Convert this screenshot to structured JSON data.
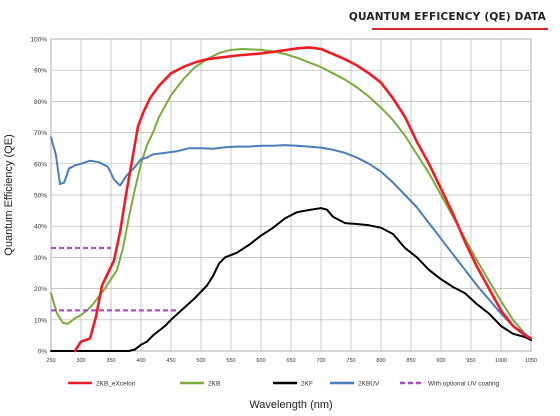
{
  "chart_data": {
    "type": "line",
    "title": "QUANTUM EFFICENCY (QE) DATA",
    "xlabel": "Wavelength (nm)",
    "ylabel": "Quantum Efficiency (QE)",
    "xlim": [
      250,
      1050
    ],
    "ylim": [
      0,
      100
    ],
    "x_ticks": [
      250,
      300,
      350,
      400,
      450,
      500,
      550,
      600,
      650,
      700,
      750,
      800,
      850,
      900,
      950,
      1000,
      1050
    ],
    "y_ticks": [
      0,
      10,
      20,
      30,
      40,
      50,
      60,
      70,
      80,
      90,
      100
    ],
    "y_tick_labels": [
      "0%",
      "10%",
      "20%",
      "30%",
      "40%",
      "50%",
      "60%",
      "70%",
      "80%",
      "90%",
      "100%"
    ],
    "grid": true,
    "legend_position": "bottom",
    "series": [
      {
        "name": "2KB_eXcelon",
        "color": "#ee1c25",
        "style": "solid",
        "points": [
          [
            290,
            0
          ],
          [
            300,
            3
          ],
          [
            315,
            4
          ],
          [
            325,
            11
          ],
          [
            335,
            21
          ],
          [
            345,
            25
          ],
          [
            355,
            29
          ],
          [
            365,
            38
          ],
          [
            375,
            50
          ],
          [
            385,
            61
          ],
          [
            395,
            72
          ],
          [
            405,
            77
          ],
          [
            415,
            81
          ],
          [
            430,
            85
          ],
          [
            450,
            89
          ],
          [
            470,
            91
          ],
          [
            490,
            92.5
          ],
          [
            510,
            93.5
          ],
          [
            530,
            94
          ],
          [
            560,
            94.7
          ],
          [
            600,
            95.4
          ],
          [
            640,
            96.4
          ],
          [
            660,
            97
          ],
          [
            680,
            97.3
          ],
          [
            700,
            96.8
          ],
          [
            720,
            95.2
          ],
          [
            740,
            93.5
          ],
          [
            760,
            91.5
          ],
          [
            780,
            89
          ],
          [
            800,
            86
          ],
          [
            820,
            81
          ],
          [
            840,
            75
          ],
          [
            860,
            67
          ],
          [
            880,
            60
          ],
          [
            900,
            52
          ],
          [
            920,
            44
          ],
          [
            940,
            35
          ],
          [
            960,
            27
          ],
          [
            980,
            20
          ],
          [
            1000,
            13
          ],
          [
            1020,
            8
          ],
          [
            1040,
            5
          ],
          [
            1050,
            4
          ]
        ]
      },
      {
        "name": "2KB",
        "color": "#7cab3c",
        "style": "solid",
        "points": [
          [
            250,
            18.5
          ],
          [
            260,
            12
          ],
          [
            270,
            9
          ],
          [
            278,
            8.7
          ],
          [
            290,
            10.5
          ],
          [
            300,
            11.5
          ],
          [
            310,
            13
          ],
          [
            320,
            15
          ],
          [
            330,
            17.5
          ],
          [
            340,
            20
          ],
          [
            350,
            23
          ],
          [
            360,
            26
          ],
          [
            370,
            33
          ],
          [
            380,
            43
          ],
          [
            390,
            52
          ],
          [
            400,
            60
          ],
          [
            410,
            66
          ],
          [
            420,
            70
          ],
          [
            430,
            75
          ],
          [
            450,
            82
          ],
          [
            470,
            87
          ],
          [
            490,
            91
          ],
          [
            510,
            93.5
          ],
          [
            530,
            95.5
          ],
          [
            550,
            96.5
          ],
          [
            570,
            96.8
          ],
          [
            600,
            96.5
          ],
          [
            620,
            96
          ],
          [
            640,
            95.2
          ],
          [
            660,
            94
          ],
          [
            680,
            92.5
          ],
          [
            700,
            91
          ],
          [
            720,
            89
          ],
          [
            740,
            87
          ],
          [
            760,
            84.5
          ],
          [
            780,
            81.5
          ],
          [
            800,
            78
          ],
          [
            820,
            74
          ],
          [
            840,
            69
          ],
          [
            860,
            63
          ],
          [
            880,
            57
          ],
          [
            900,
            50
          ],
          [
            920,
            43
          ],
          [
            940,
            36
          ],
          [
            960,
            29
          ],
          [
            980,
            22.5
          ],
          [
            1000,
            16
          ],
          [
            1020,
            10
          ],
          [
            1040,
            5.5
          ],
          [
            1050,
            4
          ]
        ]
      },
      {
        "name": "2KF",
        "color": "#000000",
        "style": "solid",
        "points": [
          [
            250,
            0
          ],
          [
            380,
            0
          ],
          [
            390,
            0.5
          ],
          [
            400,
            2
          ],
          [
            410,
            3
          ],
          [
            420,
            5
          ],
          [
            440,
            8
          ],
          [
            450,
            10
          ],
          [
            470,
            13.5
          ],
          [
            490,
            17
          ],
          [
            510,
            21
          ],
          [
            520,
            24
          ],
          [
            530,
            28
          ],
          [
            540,
            30
          ],
          [
            560,
            31.5
          ],
          [
            580,
            34
          ],
          [
            600,
            37
          ],
          [
            620,
            39.5
          ],
          [
            640,
            42.5
          ],
          [
            660,
            44.5
          ],
          [
            680,
            45.2
          ],
          [
            700,
            45.8
          ],
          [
            710,
            45.3
          ],
          [
            720,
            43
          ],
          [
            740,
            41
          ],
          [
            760,
            40.7
          ],
          [
            780,
            40.3
          ],
          [
            800,
            39.5
          ],
          [
            820,
            37.5
          ],
          [
            840,
            33
          ],
          [
            860,
            30
          ],
          [
            880,
            26
          ],
          [
            900,
            23
          ],
          [
            920,
            20.5
          ],
          [
            940,
            18.5
          ],
          [
            960,
            15
          ],
          [
            980,
            12
          ],
          [
            1000,
            8
          ],
          [
            1020,
            5.5
          ],
          [
            1040,
            4.5
          ],
          [
            1050,
            3.5
          ]
        ]
      },
      {
        "name": "2KBUV",
        "color": "#4a7ebb",
        "style": "solid",
        "points": [
          [
            250,
            68.5
          ],
          [
            258,
            63
          ],
          [
            265,
            53.5
          ],
          [
            272,
            54
          ],
          [
            280,
            58.5
          ],
          [
            290,
            59.5
          ],
          [
            300,
            60
          ],
          [
            315,
            61
          ],
          [
            330,
            60.5
          ],
          [
            345,
            59
          ],
          [
            355,
            55
          ],
          [
            365,
            53
          ],
          [
            375,
            56
          ],
          [
            390,
            59
          ],
          [
            400,
            61.5
          ],
          [
            410,
            62
          ],
          [
            420,
            63
          ],
          [
            440,
            63.5
          ],
          [
            460,
            64
          ],
          [
            480,
            65
          ],
          [
            500,
            65
          ],
          [
            520,
            64.8
          ],
          [
            540,
            65.3
          ],
          [
            560,
            65.5
          ],
          [
            580,
            65.5
          ],
          [
            600,
            65.8
          ],
          [
            620,
            65.8
          ],
          [
            640,
            66
          ],
          [
            660,
            65.8
          ],
          [
            680,
            65.5
          ],
          [
            700,
            65.2
          ],
          [
            720,
            64.5
          ],
          [
            740,
            63.5
          ],
          [
            760,
            62
          ],
          [
            780,
            60
          ],
          [
            800,
            57.5
          ],
          [
            820,
            54
          ],
          [
            840,
            50
          ],
          [
            860,
            46
          ],
          [
            880,
            41
          ],
          [
            900,
            36
          ],
          [
            920,
            31
          ],
          [
            940,
            26
          ],
          [
            960,
            21
          ],
          [
            980,
            16.5
          ],
          [
            1000,
            12
          ],
          [
            1020,
            8
          ],
          [
            1040,
            5.5
          ],
          [
            1050,
            4
          ]
        ]
      },
      {
        "name": "With optional UV coating",
        "color": "#b050c0",
        "style": "dashed",
        "points": [
          [
            250,
            33
          ],
          [
            350,
            33
          ]
        ]
      },
      {
        "name": "",
        "color": "#b050c0",
        "style": "dashed",
        "points": [
          [
            250,
            13
          ],
          [
            460,
            13
          ]
        ]
      }
    ]
  }
}
